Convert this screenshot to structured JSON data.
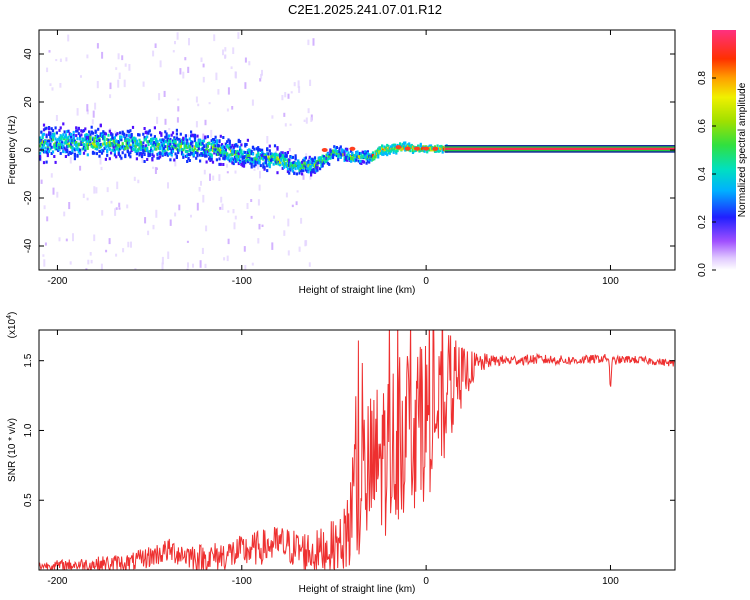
{
  "figure_title": "C2E1.2025.241.07.01.R12",
  "chart_data": [
    {
      "type": "heatmap",
      "title": "C2E1.2025.241.07.01.R12",
      "xlabel": "Height of straight line (km)",
      "ylabel": "Frequency (Hz)",
      "xlim": [
        -210,
        135
      ],
      "ylim": [
        -50,
        50
      ],
      "x_ticks": [
        -200,
        -100,
        0,
        100
      ],
      "x_tick_labels": [
        "-200",
        "-100",
        "0",
        "100"
      ],
      "y_ticks": [
        -40,
        -20,
        0,
        20,
        40
      ],
      "y_tick_labels": [
        "-40",
        "-20",
        "0",
        "20",
        "40"
      ],
      "colorbar": {
        "label": "Normalized spectral amplitude",
        "range": [
          0,
          1
        ],
        "ticks": [
          0.0,
          0.2,
          0.4,
          0.6,
          0.8
        ],
        "tick_labels": [
          "0.0",
          "0.2",
          "0.4",
          "0.6",
          "0.8"
        ]
      },
      "ridge": {
        "description": "frequency centre of the spectral band vs height",
        "x": [
          -210,
          -180,
          -150,
          -120,
          -100,
          -80,
          -70,
          -60,
          -50,
          -40,
          -30,
          -25,
          -15,
          0,
          10,
          135
        ],
        "y": [
          3,
          3,
          2,
          1,
          -2,
          -4,
          -7,
          -6,
          -1,
          -3,
          -3,
          0,
          1,
          0.5,
          0.5,
          0.5
        ]
      },
      "band_spread_hz": {
        "x": [
          -210,
          -150,
          -100,
          -60,
          -30,
          -10,
          10,
          135
        ],
        "y": [
          8,
          7,
          6,
          4,
          3,
          2,
          1.5,
          0.6
        ]
      }
    },
    {
      "type": "line",
      "title": "",
      "xlabel": "Height of straight line (km)",
      "ylabel": "SNR (10 * v/v)",
      "y_scale_label": "(x10",
      "y_scale_exponent": "4",
      "xlim": [
        -210,
        135
      ],
      "ylim": [
        0,
        1.72
      ],
      "x_ticks": [
        -200,
        -100,
        0,
        100
      ],
      "x_tick_labels": [
        "-200",
        "-100",
        "0",
        "100"
      ],
      "y_ticks": [
        0.5,
        1.0,
        1.5
      ],
      "y_tick_labels": [
        "0.5",
        "1.0",
        "1.5"
      ],
      "series": [
        {
          "name": "SNR",
          "color": "#ee3030",
          "envelope_x": [
            -210,
            -180,
            -160,
            -140,
            -120,
            -100,
            -80,
            -70,
            -60,
            -45,
            -40,
            -35,
            -30,
            -25,
            -20,
            -15,
            -10,
            -5,
            0,
            10,
            15,
            20,
            25,
            30,
            35,
            40,
            60,
            80,
            99,
            100,
            101,
            110,
            120,
            135
          ],
          "envelope_y": [
            0.03,
            0.04,
            0.05,
            0.14,
            0.08,
            0.13,
            0.19,
            0.15,
            0.12,
            0.2,
            0.4,
            0.6,
            0.7,
            0.8,
            0.85,
            0.95,
            1.0,
            1.05,
            1.1,
            1.15,
            1.3,
            1.4,
            1.45,
            1.48,
            1.5,
            1.5,
            1.51,
            1.5,
            1.52,
            1.3,
            1.5,
            1.51,
            1.5,
            1.48
          ],
          "noise_amplitude_x": [
            -210,
            -150,
            -100,
            -70,
            -45,
            -40,
            -20,
            0,
            15,
            25,
            35,
            135
          ],
          "noise_amplitude_y": [
            0.03,
            0.08,
            0.12,
            0.14,
            0.2,
            0.55,
            0.6,
            0.6,
            0.3,
            0.12,
            0.04,
            0.025
          ]
        }
      ]
    }
  ]
}
